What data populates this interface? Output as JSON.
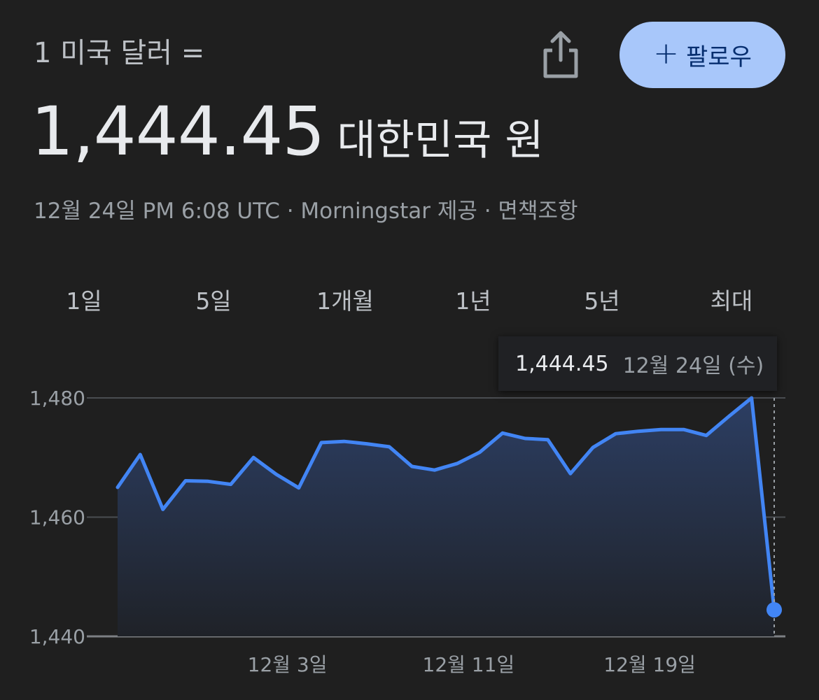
{
  "header": {
    "rate_label": "1 미국 달러 =",
    "value": "1,444.45",
    "currency": "대한민국 원",
    "meta": "12월 24일 PM 6:08 UTC · Morningstar 제공 · 면책조항",
    "follow_label": "팔로우",
    "follow_plus": "+"
  },
  "icons": {
    "share": "share-icon",
    "plus": "plus-icon"
  },
  "ranges": [
    {
      "label": "1일",
      "active": false
    },
    {
      "label": "5일",
      "active": false
    },
    {
      "label": "1개월",
      "active": true
    },
    {
      "label": "1년",
      "active": false
    },
    {
      "label": "5년",
      "active": false
    },
    {
      "label": "최대",
      "active": false
    }
  ],
  "tooltip": {
    "value": "1,444.45",
    "date": "12월 24일 (수)"
  },
  "colors": {
    "accent": "#4285f4",
    "follow_bg": "#a8c7fa",
    "background": "#1f1f1f"
  },
  "chart_data": {
    "type": "area",
    "ylim": [
      1440,
      1480
    ],
    "yticks": [
      1440,
      1460,
      1480
    ],
    "ytick_labels": [
      "1,440",
      "1,460",
      "1,480"
    ],
    "xticks": [
      {
        "label": "12월 3일",
        "index": 7.5
      },
      {
        "label": "12월 11일",
        "index": 15.5
      },
      {
        "label": "12월 19일",
        "index": 23.5
      }
    ],
    "values": [
      1465.0,
      1470.5,
      1461.3,
      1466.1,
      1466.0,
      1465.5,
      1470.0,
      1467.2,
      1464.9,
      1472.5,
      1472.7,
      1472.3,
      1471.8,
      1468.5,
      1467.9,
      1469.0,
      1470.9,
      1474.1,
      1473.2,
      1473.0,
      1467.3,
      1471.7,
      1474.0,
      1474.4,
      1474.7,
      1474.7,
      1473.7,
      1476.9,
      1480.0,
      1444.45
    ],
    "grid": true,
    "highlight_index": 29
  }
}
